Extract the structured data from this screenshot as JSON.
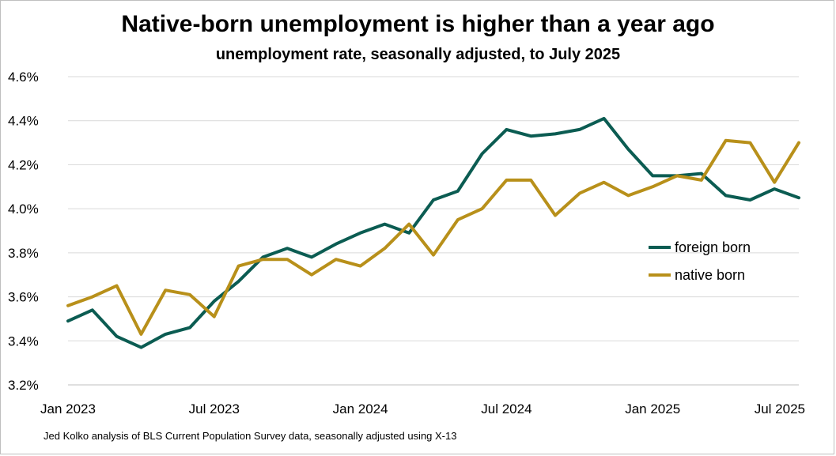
{
  "chart_data": {
    "type": "line",
    "title": "Native-born unemployment is higher than a year ago",
    "subtitle": "unemployment rate, seasonally adjusted, to July 2025",
    "source": "Jed Kolko analysis of BLS Current Population Survey data, seasonally adjusted using X-13",
    "xlabel": "",
    "ylabel": "",
    "ylim": [
      3.2,
      4.6
    ],
    "y_ticks": [
      "3.2%",
      "3.4%",
      "3.6%",
      "3.8%",
      "4.0%",
      "4.2%",
      "4.4%",
      "4.6%"
    ],
    "x_ticks": [
      "Jan 2023",
      "Jul 2023",
      "Jan 2024",
      "Jul 2024",
      "Jan 2025",
      "Jul 2025"
    ],
    "x": [
      "Jan 2023",
      "Feb 2023",
      "Mar 2023",
      "Apr 2023",
      "May 2023",
      "Jun 2023",
      "Jul 2023",
      "Aug 2023",
      "Sep 2023",
      "Oct 2023",
      "Nov 2023",
      "Dec 2023",
      "Jan 2024",
      "Feb 2024",
      "Mar 2024",
      "Apr 2024",
      "May 2024",
      "Jun 2024",
      "Jul 2024",
      "Aug 2024",
      "Sep 2024",
      "Oct 2024",
      "Nov 2024",
      "Dec 2024",
      "Jan 2025",
      "Feb 2025",
      "Mar 2025",
      "Apr 2025",
      "May 2025",
      "Jun 2025",
      "Jul 2025"
    ],
    "grid": true,
    "legend_position": "right",
    "series": [
      {
        "name": "foreign born",
        "color": "#0b5c52",
        "values": [
          3.49,
          3.54,
          3.42,
          3.37,
          3.43,
          3.46,
          3.58,
          3.67,
          3.78,
          3.82,
          3.78,
          3.84,
          3.89,
          3.93,
          3.89,
          4.04,
          4.08,
          4.25,
          4.36,
          4.33,
          4.34,
          4.36,
          4.41,
          4.27,
          4.15,
          4.15,
          4.16,
          4.06,
          4.04,
          4.09,
          4.05
        ]
      },
      {
        "name": "native born",
        "color": "#b8901a",
        "values": [
          3.56,
          3.6,
          3.65,
          3.43,
          3.63,
          3.61,
          3.51,
          3.74,
          3.77,
          3.77,
          3.7,
          3.77,
          3.74,
          3.82,
          3.93,
          3.79,
          3.95,
          4.0,
          4.13,
          4.13,
          3.97,
          4.07,
          4.12,
          4.06,
          4.1,
          4.15,
          4.13,
          4.31,
          4.3,
          4.12,
          4.3
        ]
      }
    ]
  }
}
